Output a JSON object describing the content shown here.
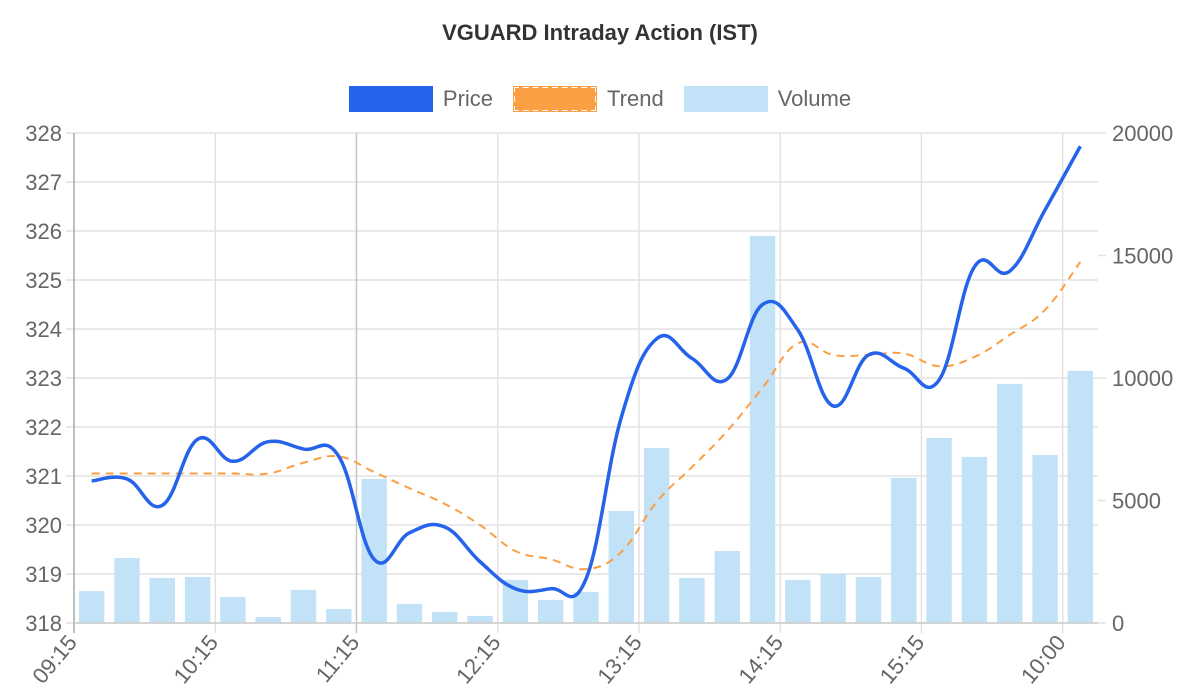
{
  "title": "VGUARD Intraday Action (IST)",
  "legend": [
    {
      "label": "Price",
      "color": "#2563eb",
      "style": "solid"
    },
    {
      "label": "Trend",
      "color": "#fb9f44",
      "style": "dashed"
    },
    {
      "label": "Volume",
      "color": "#c2e2f7",
      "style": "bar"
    }
  ],
  "colors": {
    "price": "#2563eb",
    "trend": "#fb9f44",
    "volume": "#c2e2f7",
    "grid": "#e2e2e2",
    "axis_text": "#666666",
    "title_text": "#333333"
  },
  "x_tick_labels": [
    "09:15",
    "10:15",
    "11:15",
    "12:15",
    "13:15",
    "14:15",
    "15:15",
    "10:00"
  ],
  "y_left_ticks": [
    "318",
    "319",
    "320",
    "321",
    "322",
    "323",
    "324",
    "325",
    "326",
    "327",
    "328"
  ],
  "y_right_ticks": [
    "0",
    "5000",
    "10000",
    "15000",
    "20000"
  ],
  "chart_data": {
    "type": "bar",
    "title": "VGUARD Intraday Action (IST)",
    "xlabel": "",
    "ylabel": "",
    "legend_position": "top",
    "grid": true,
    "categories_count": 29,
    "x_tick_labels": [
      "09:15",
      "10:15",
      "11:15",
      "12:15",
      "13:15",
      "14:15",
      "15:15",
      "10:00"
    ],
    "x_tick_every": 4,
    "y_left": {
      "min": 318,
      "max": 328,
      "step": 1
    },
    "y_right": {
      "min": 0,
      "max": 20000,
      "step": 5000
    },
    "series": [
      {
        "name": "Price",
        "type": "line",
        "axis": "left",
        "values": [
          320.9,
          320.94,
          320.4,
          321.75,
          321.3,
          321.7,
          321.55,
          321.4,
          319.3,
          319.84,
          319.96,
          319.25,
          318.7,
          318.7,
          318.9,
          322.2,
          323.8,
          323.4,
          322.98,
          324.5,
          323.98,
          322.43,
          323.47,
          323.2,
          322.96,
          325.27,
          325.18,
          326.43,
          327.73
        ]
      },
      {
        "name": "Trend",
        "type": "line",
        "style": "dashed",
        "axis": "left",
        "values": [
          321.05,
          321.05,
          321.05,
          321.05,
          321.05,
          321.05,
          321.27,
          321.4,
          321.08,
          320.75,
          320.43,
          320.0,
          319.47,
          319.3,
          319.1,
          319.45,
          320.47,
          321.18,
          321.92,
          322.8,
          323.71,
          323.47,
          323.47,
          323.5,
          323.24,
          323.43,
          323.88,
          324.39,
          325.37
        ]
      },
      {
        "name": "Volume",
        "type": "bar",
        "axis": "right",
        "values": [
          1300,
          2650,
          1840,
          1880,
          1060,
          240,
          1350,
          570,
          5880,
          780,
          450,
          290,
          1760,
          940,
          1270,
          4570,
          7140,
          1840,
          2940,
          15800,
          1760,
          2000,
          1880,
          5920,
          7550,
          6780,
          9760,
          6860,
          10290
        ]
      }
    ]
  }
}
